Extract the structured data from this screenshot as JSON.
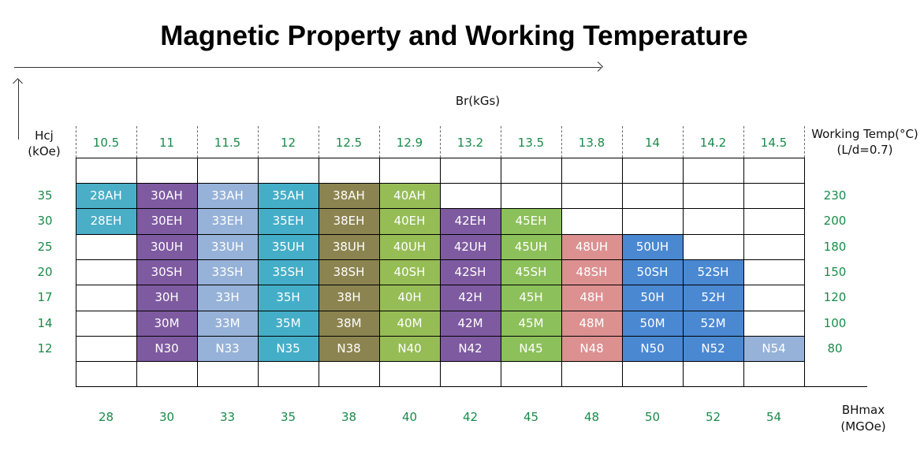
{
  "title": "Magnetic Property and Working Temperature",
  "axes": {
    "hcj_label_line1": "Hcj",
    "hcj_label_line2": "(kOe)",
    "br_label": "Br(kGs)",
    "working_temp_line1": "Working Temp(°C)",
    "working_temp_line2": "(L/d=0.7)",
    "bhmax_line1": "BHmax",
    "bhmax_line2": "(MGOe)"
  },
  "br_values": [
    "10.5",
    "11",
    "11.5",
    "12",
    "12.5",
    "12.9",
    "13.2",
    "13.5",
    "13.8",
    "14",
    "14.2",
    "14.5"
  ],
  "bhmax_values": [
    "28",
    "30",
    "33",
    "35",
    "38",
    "40",
    "42",
    "45",
    "48",
    "50",
    "52",
    "54"
  ],
  "hcj_values": [
    "35",
    "30",
    "25",
    "20",
    "17",
    "14",
    "12"
  ],
  "working_temps": [
    "230",
    "200",
    "180",
    "150",
    "120",
    "100",
    "80"
  ],
  "colors": {
    "28": "#4aaec6",
    "30": "#7e5aa0",
    "33": "#96b2d8",
    "35": "#44aec8",
    "38": "#8c8450",
    "40": "#96bc56",
    "42": "#7e5aa0",
    "45": "#8cc05a",
    "48": "#dc9090",
    "50": "#4a88d2",
    "52": "#4a88d2",
    "54": "#96b2d8"
  },
  "grades": [
    {
      "row": 0,
      "col": 0,
      "label": "28AH",
      "color_key": "28"
    },
    {
      "row": 0,
      "col": 1,
      "label": "30AH",
      "color_key": "30"
    },
    {
      "row": 0,
      "col": 2,
      "label": "33AH",
      "color_key": "33"
    },
    {
      "row": 0,
      "col": 3,
      "label": "35AH",
      "color_key": "35"
    },
    {
      "row": 0,
      "col": 4,
      "label": "38AH",
      "color_key": "38"
    },
    {
      "row": 0,
      "col": 5,
      "label": "40AH",
      "color_key": "40"
    },
    {
      "row": 1,
      "col": 0,
      "label": "28EH",
      "color_key": "28"
    },
    {
      "row": 1,
      "col": 1,
      "label": "30EH",
      "color_key": "30"
    },
    {
      "row": 1,
      "col": 2,
      "label": "33EH",
      "color_key": "33"
    },
    {
      "row": 1,
      "col": 3,
      "label": "35EH",
      "color_key": "35"
    },
    {
      "row": 1,
      "col": 4,
      "label": "38EH",
      "color_key": "38"
    },
    {
      "row": 1,
      "col": 5,
      "label": "40EH",
      "color_key": "40"
    },
    {
      "row": 1,
      "col": 6,
      "label": "42EH",
      "color_key": "42"
    },
    {
      "row": 1,
      "col": 7,
      "label": "45EH",
      "color_key": "45"
    },
    {
      "row": 2,
      "col": 1,
      "label": "30UH",
      "color_key": "30"
    },
    {
      "row": 2,
      "col": 2,
      "label": "33UH",
      "color_key": "33"
    },
    {
      "row": 2,
      "col": 3,
      "label": "35UH",
      "color_key": "35"
    },
    {
      "row": 2,
      "col": 4,
      "label": "38UH",
      "color_key": "38"
    },
    {
      "row": 2,
      "col": 5,
      "label": "40UH",
      "color_key": "40"
    },
    {
      "row": 2,
      "col": 6,
      "label": "42UH",
      "color_key": "42"
    },
    {
      "row": 2,
      "col": 7,
      "label": "45UH",
      "color_key": "45"
    },
    {
      "row": 2,
      "col": 8,
      "label": "48UH",
      "color_key": "48"
    },
    {
      "row": 2,
      "col": 9,
      "label": "50UH",
      "color_key": "50"
    },
    {
      "row": 3,
      "col": 1,
      "label": "30SH",
      "color_key": "30"
    },
    {
      "row": 3,
      "col": 2,
      "label": "33SH",
      "color_key": "33"
    },
    {
      "row": 3,
      "col": 3,
      "label": "35SH",
      "color_key": "35"
    },
    {
      "row": 3,
      "col": 4,
      "label": "38SH",
      "color_key": "38"
    },
    {
      "row": 3,
      "col": 5,
      "label": "40SH",
      "color_key": "40"
    },
    {
      "row": 3,
      "col": 6,
      "label": "42SH",
      "color_key": "42"
    },
    {
      "row": 3,
      "col": 7,
      "label": "45SH",
      "color_key": "45"
    },
    {
      "row": 3,
      "col": 8,
      "label": "48SH",
      "color_key": "48"
    },
    {
      "row": 3,
      "col": 9,
      "label": "50SH",
      "color_key": "50"
    },
    {
      "row": 3,
      "col": 10,
      "label": "52SH",
      "color_key": "52"
    },
    {
      "row": 4,
      "col": 1,
      "label": "30H",
      "color_key": "30"
    },
    {
      "row": 4,
      "col": 2,
      "label": "33H",
      "color_key": "33"
    },
    {
      "row": 4,
      "col": 3,
      "label": "35H",
      "color_key": "35"
    },
    {
      "row": 4,
      "col": 4,
      "label": "38H",
      "color_key": "38"
    },
    {
      "row": 4,
      "col": 5,
      "label": "40H",
      "color_key": "40"
    },
    {
      "row": 4,
      "col": 6,
      "label": "42H",
      "color_key": "42"
    },
    {
      "row": 4,
      "col": 7,
      "label": "45H",
      "color_key": "45"
    },
    {
      "row": 4,
      "col": 8,
      "label": "48H",
      "color_key": "48"
    },
    {
      "row": 4,
      "col": 9,
      "label": "50H",
      "color_key": "50"
    },
    {
      "row": 4,
      "col": 10,
      "label": "52H",
      "color_key": "52"
    },
    {
      "row": 5,
      "col": 1,
      "label": "30M",
      "color_key": "30"
    },
    {
      "row": 5,
      "col": 2,
      "label": "33M",
      "color_key": "33"
    },
    {
      "row": 5,
      "col": 3,
      "label": "35M",
      "color_key": "35"
    },
    {
      "row": 5,
      "col": 4,
      "label": "38M",
      "color_key": "38"
    },
    {
      "row": 5,
      "col": 5,
      "label": "40M",
      "color_key": "40"
    },
    {
      "row": 5,
      "col": 6,
      "label": "42M",
      "color_key": "42"
    },
    {
      "row": 5,
      "col": 7,
      "label": "45M",
      "color_key": "45"
    },
    {
      "row": 5,
      "col": 8,
      "label": "48M",
      "color_key": "48"
    },
    {
      "row": 5,
      "col": 9,
      "label": "50M",
      "color_key": "50"
    },
    {
      "row": 5,
      "col": 10,
      "label": "52M",
      "color_key": "52"
    },
    {
      "row": 6,
      "col": 1,
      "label": "N30",
      "color_key": "30"
    },
    {
      "row": 6,
      "col": 2,
      "label": "N33",
      "color_key": "33"
    },
    {
      "row": 6,
      "col": 3,
      "label": "N35",
      "color_key": "35"
    },
    {
      "row": 6,
      "col": 4,
      "label": "N38",
      "color_key": "38"
    },
    {
      "row": 6,
      "col": 5,
      "label": "N40",
      "color_key": "40"
    },
    {
      "row": 6,
      "col": 6,
      "label": "N42",
      "color_key": "42"
    },
    {
      "row": 6,
      "col": 7,
      "label": "N45",
      "color_key": "45"
    },
    {
      "row": 6,
      "col": 8,
      "label": "N48",
      "color_key": "48"
    },
    {
      "row": 6,
      "col": 9,
      "label": "N50",
      "color_key": "50"
    },
    {
      "row": 6,
      "col": 10,
      "label": "N52",
      "color_key": "52"
    },
    {
      "row": 6,
      "col": 11,
      "label": "N54",
      "color_key": "54"
    }
  ]
}
